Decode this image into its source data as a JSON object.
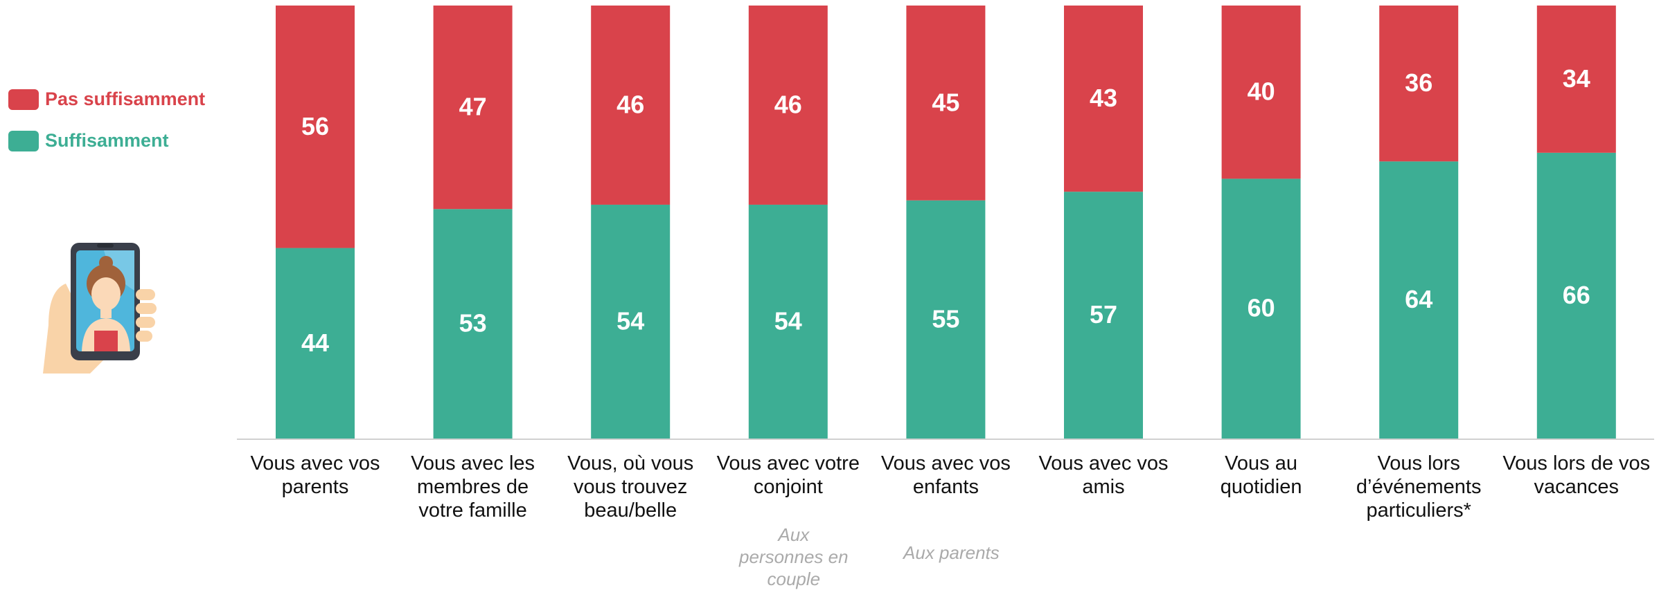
{
  "chart_data": {
    "type": "stacked_bar",
    "categories": [
      "Vous avec vos parents",
      "Vous avec les membres de votre famille",
      "Vous, où vous vous trouvez beau/belle",
      "Vous avec votre conjoint",
      "Vous avec vos enfants",
      "Vous avec vos amis",
      "Vous au quotidien",
      "Vous lors d’événements particuliers*",
      "Vous lors de vos vacances"
    ],
    "series": [
      {
        "name": "Pas suffisamment",
        "color": "#d9434b",
        "values": [
          56,
          47,
          46,
          46,
          45,
          43,
          40,
          36,
          34
        ]
      },
      {
        "name": "Suffisamment",
        "color": "#3dae94",
        "values": [
          44,
          53,
          54,
          54,
          55,
          57,
          60,
          64,
          66
        ]
      }
    ],
    "annotations": [
      null,
      null,
      null,
      "Aux personnes en couple",
      "Aux parents",
      null,
      null,
      null,
      null
    ]
  }
}
